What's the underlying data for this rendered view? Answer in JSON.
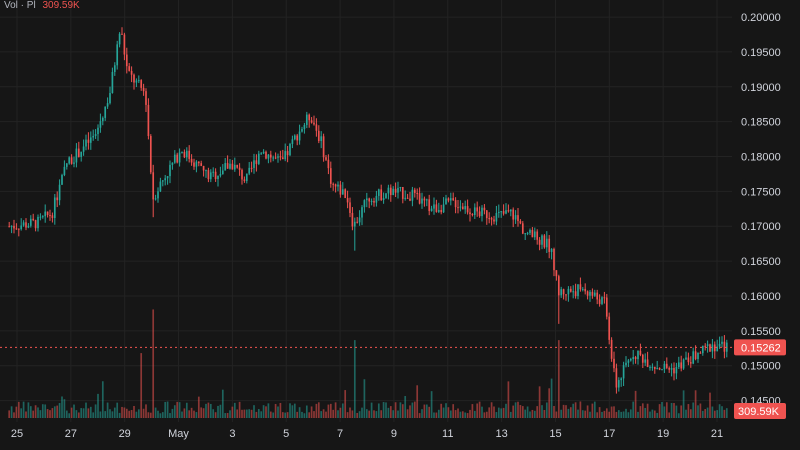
{
  "legend": {
    "label": "Vol · Pl",
    "value": "309.59K"
  },
  "colors": {
    "background": "#161616",
    "up": "#26a69a",
    "down": "#ef5350",
    "grid": "#232323",
    "axisText": "#d1d4dc"
  },
  "chart_data": {
    "type": "candlestick",
    "grid": true,
    "price_axis": {
      "position": "right",
      "ticks": [
        "0.20000",
        "0.19500",
        "0.19000",
        "0.18500",
        "0.18000",
        "0.17500",
        "0.17000",
        "0.16500",
        "0.16000",
        "0.15500",
        "0.15000",
        "0.14500"
      ],
      "ylim": [
        0.1425,
        0.2013
      ]
    },
    "time_axis": {
      "ticks": [
        "25",
        "27",
        "29",
        "May",
        "3",
        "5",
        "7",
        "9",
        "11",
        "13",
        "15",
        "17",
        "19",
        "21"
      ]
    },
    "current_price": "0.15262",
    "current_volume": "309.59K",
    "price_path": [
      [
        0.0,
        0.17
      ],
      [
        0.04,
        0.1705
      ],
      [
        0.06,
        0.172
      ],
      [
        0.08,
        0.179
      ],
      [
        0.1,
        0.181
      ],
      [
        0.12,
        0.183
      ],
      [
        0.14,
        0.189
      ],
      [
        0.155,
        0.1985
      ],
      [
        0.165,
        0.192
      ],
      [
        0.19,
        0.189
      ],
      [
        0.2,
        0.174
      ],
      [
        0.21,
        0.176
      ],
      [
        0.24,
        0.181
      ],
      [
        0.28,
        0.177
      ],
      [
        0.31,
        0.179
      ],
      [
        0.33,
        0.1765
      ],
      [
        0.35,
        0.181
      ],
      [
        0.38,
        0.179
      ],
      [
        0.4,
        0.183
      ],
      [
        0.42,
        0.186
      ],
      [
        0.435,
        0.182
      ],
      [
        0.45,
        0.176
      ],
      [
        0.47,
        0.1745
      ],
      [
        0.48,
        0.17
      ],
      [
        0.5,
        0.174
      ],
      [
        0.53,
        0.175
      ],
      [
        0.56,
        0.1745
      ],
      [
        0.59,
        0.1725
      ],
      [
        0.62,
        0.1735
      ],
      [
        0.65,
        0.172
      ],
      [
        0.68,
        0.1715
      ],
      [
        0.7,
        0.172
      ],
      [
        0.72,
        0.169
      ],
      [
        0.74,
        0.168
      ],
      [
        0.755,
        0.167
      ],
      [
        0.765,
        0.1605
      ],
      [
        0.8,
        0.161
      ],
      [
        0.83,
        0.159
      ],
      [
        0.845,
        0.147
      ],
      [
        0.87,
        0.152
      ],
      [
        0.9,
        0.15
      ],
      [
        0.925,
        0.1495
      ],
      [
        0.95,
        0.151
      ],
      [
        0.98,
        0.153
      ],
      [
        1.0,
        0.15262
      ]
    ],
    "spikes": [
      {
        "t": 0.2,
        "low": 0.1713
      },
      {
        "t": 0.48,
        "low": 0.1665
      },
      {
        "t": 0.765,
        "low": 0.156
      },
      {
        "t": 0.845,
        "low": 0.146
      }
    ],
    "volume_spikes": [
      {
        "t": 0.2,
        "rel": 0.92
      },
      {
        "t": 0.185,
        "rel": 0.55
      },
      {
        "t": 0.48,
        "rel": 0.66
      },
      {
        "t": 0.765,
        "rel": 0.66
      }
    ],
    "candle_count": 300
  }
}
